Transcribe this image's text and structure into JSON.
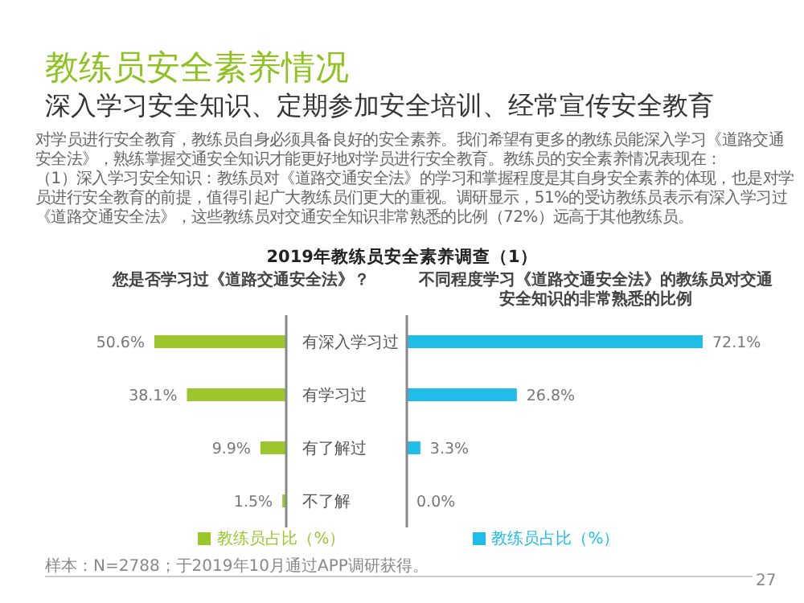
{
  "chart_data": [
    {
      "type": "bar",
      "orientation": "horizontal",
      "title": "您是否学习过《道路交通安全法》？",
      "categories": [
        "有深入学习过",
        "有学习过",
        "有了解过",
        "不了解"
      ],
      "series": [
        {
          "name": "教练员占比（%）",
          "color": "#9bc62c",
          "values": [
            50.6,
            38.1,
            9.9,
            1.5
          ],
          "value_labels": [
            "50.6%",
            "38.1%",
            "9.9%",
            "1.5%"
          ]
        }
      ],
      "legend": "bottom",
      "annotations": [
        "教练员安全素养情况",
        "深入学习安全知识、定期参加安全培训、经常宣传安全教育",
        "对学员进行安全教育，教练员自身必须具备良好的安全素养。我们希望有更多的教练员能深入学习《道路交通安全法》，熟练掌握交通安全知识才能更好地对学员进行安全教育。教练员的安全素养情况表现在：",
        "（1）深入学习安全知识：教练员对《道路交通安全法》的学习和掌握程度是其自身安全素养的体现，也是对学员进行安全教育的前提，值得引起广大教练员们更大的重视。调研显示，51%的受访教练员表示有深入学习过《道路交通安全法》，这些教练员对交通安全知识非常熟悉的比例（72%）远高于其他教练员。",
        "2019年教练员安全素养调查（1）",
        "样本：N=2788；于2019年10月通过APP调研获得。",
        "27"
      ]
    },
    {
      "type": "bar",
      "orientation": "horizontal",
      "title": "不同程度学习《道路交通安全法》的教练员对交通安全知识的非常熟悉的比例",
      "categories": [
        null,
        null,
        null,
        null
      ],
      "series": [
        {
          "name": "教练员占比（%）",
          "color": "#1fbde8",
          "values": [
            72.1,
            26.8,
            3.3,
            0.0
          ],
          "value_labels": [
            "72.1%",
            "26.8%",
            "3.3%",
            "0.0%"
          ]
        }
      ],
      "legend": "bottom"
    }
  ]
}
